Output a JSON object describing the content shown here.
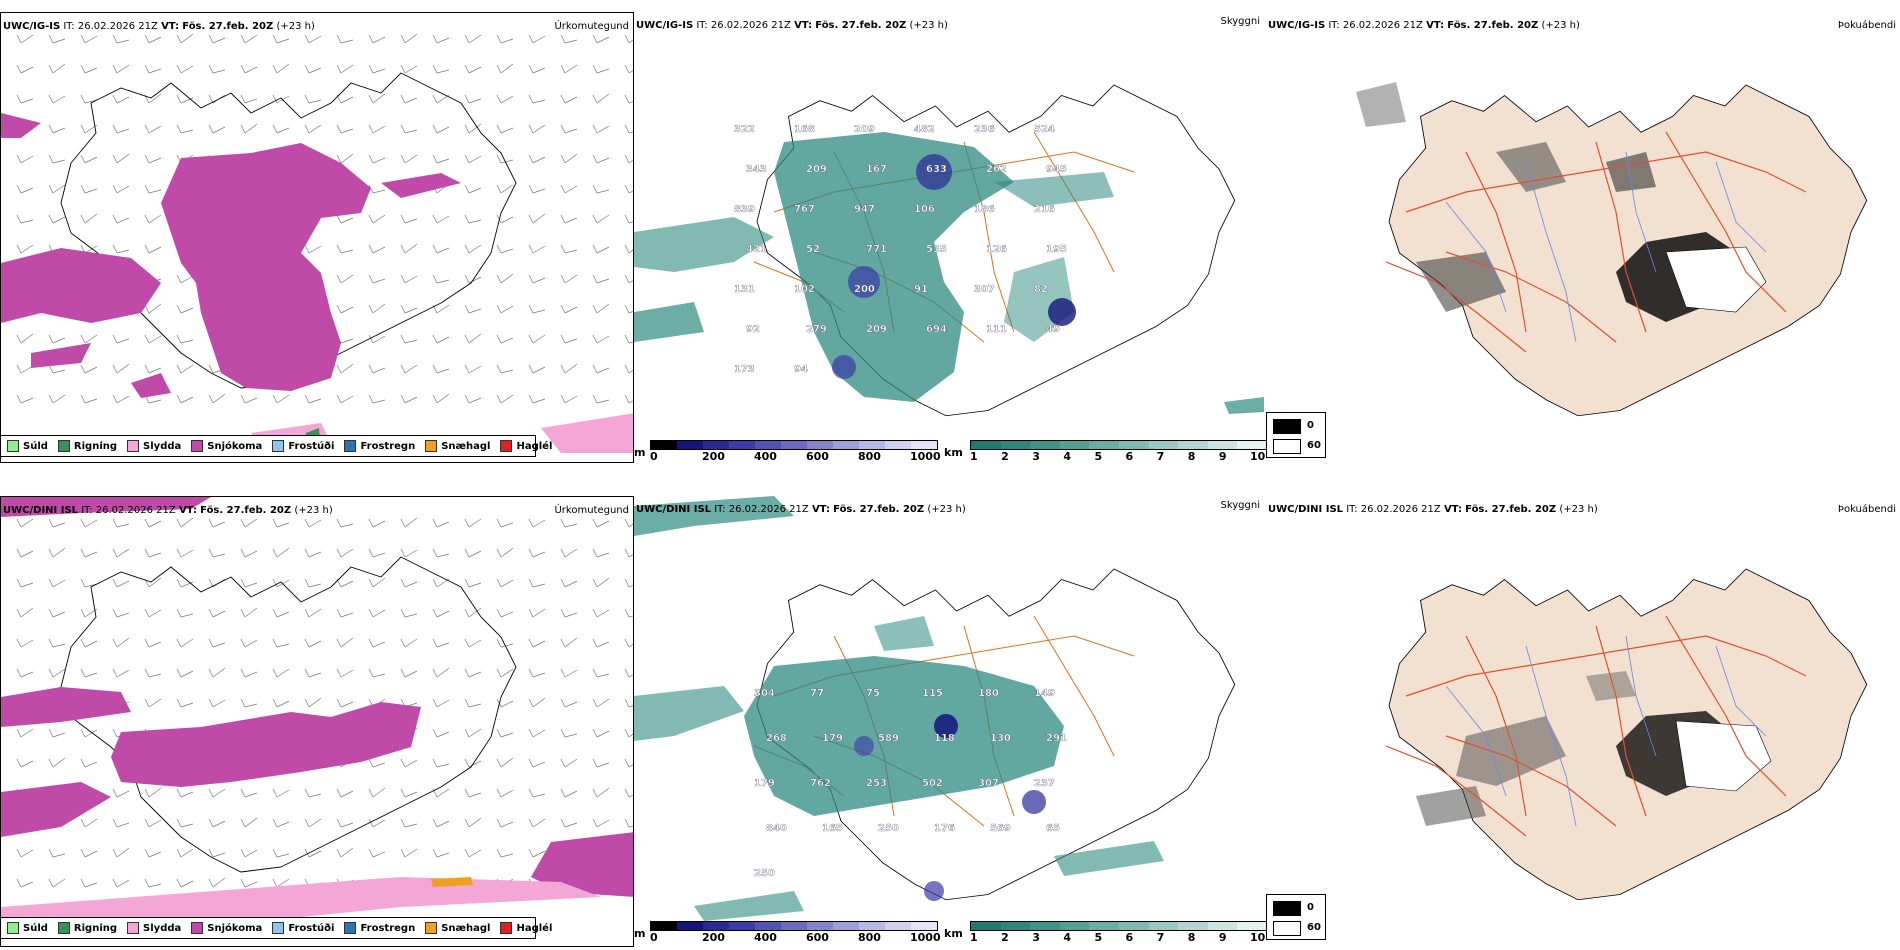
{
  "rows": [
    {
      "model": "UWC/IG-IS",
      "it_label": "IT:",
      "it_value": "26.02.2026 21Z",
      "vt_label": "VT:",
      "vt_value": "Fös. 27.feb. 20Z",
      "lead": "(+23 h)"
    },
    {
      "model": "UWC/DINI ISL",
      "it_label": "IT:",
      "it_value": "26.02.2026 21Z",
      "vt_label": "VT:",
      "vt_value": "Fös. 27.feb. 20Z",
      "lead": "(+23 h)"
    }
  ],
  "panel_names": {
    "precip": "Úrkomutegund",
    "visibility": "Skyggni",
    "fog": "Þokuábendi"
  },
  "precip_legend": [
    {
      "label": "Súld",
      "color": "#90ee90"
    },
    {
      "label": "Rigning",
      "color": "#3a8f5a"
    },
    {
      "label": "Slydda",
      "color": "#f4a6d7"
    },
    {
      "label": "Snjókoma",
      "color": "#c04aa8"
    },
    {
      "label": "Frostúði",
      "color": "#8fc4f0"
    },
    {
      "label": "Frostregn",
      "color": "#2f72b8"
    },
    {
      "label": "Snæhagl",
      "color": "#f0a020"
    },
    {
      "label": "Haglél",
      "color": "#e02020"
    }
  ],
  "cloud_base_scale": {
    "unit": "m",
    "ticks": [
      "0",
      "200",
      "400",
      "600",
      "800",
      "1000"
    ],
    "colors": [
      "#000000",
      "#14147a",
      "#2a2a96",
      "#3a3aa8",
      "#5252b4",
      "#6a6ac0",
      "#8484cc",
      "#9e9ed8",
      "#b8b8e2",
      "#d0d0ec",
      "#e4e4f4"
    ]
  },
  "visibility_scale": {
    "unit": "km",
    "ticks": [
      "1",
      "2",
      "3",
      "4",
      "5",
      "6",
      "7",
      "8",
      "9",
      "10"
    ],
    "colors": [
      "#1f7a70",
      "#2f877c",
      "#3f9488",
      "#54a095",
      "#6aaea2",
      "#80bab0",
      "#98c8bf",
      "#b2d6cf",
      "#cce4df",
      "#e6f2ef"
    ]
  },
  "fog_scale": {
    "high": "0",
    "low": "60",
    "high_color": "#000000",
    "low_color": "#ffffff"
  },
  "cloud_labels_top": [
    "322",
    "168",
    "209",
    "482",
    "236",
    "524",
    "343",
    "209",
    "167",
    "633",
    "262",
    "945",
    "839",
    "767",
    "947",
    "106",
    "186",
    "216",
    "421",
    "52",
    "771",
    "535",
    "126",
    "195",
    "131",
    "102",
    "200",
    "91",
    "307",
    "82",
    "92",
    "279",
    "209",
    "694",
    "111",
    "49",
    "173",
    "94"
  ],
  "cloud_labels_bottom": [
    "304",
    "77",
    "75",
    "115",
    "180",
    "149",
    "268",
    "179",
    "589",
    "118",
    "130",
    "291",
    "179",
    "762",
    "253",
    "502",
    "307",
    "237",
    "840",
    "165",
    "250",
    "176",
    "569",
    "65",
    "250"
  ],
  "colors": {
    "snow": "#c04aa8",
    "sleet": "#f4a6d7",
    "rain": "#3a8f5a",
    "land_fill": "#f2e0d0",
    "coastline": "#000000",
    "road": "#e07020",
    "fog_road": "#e05030",
    "river": "#6688ee",
    "vis_low": "#2e8a80"
  }
}
